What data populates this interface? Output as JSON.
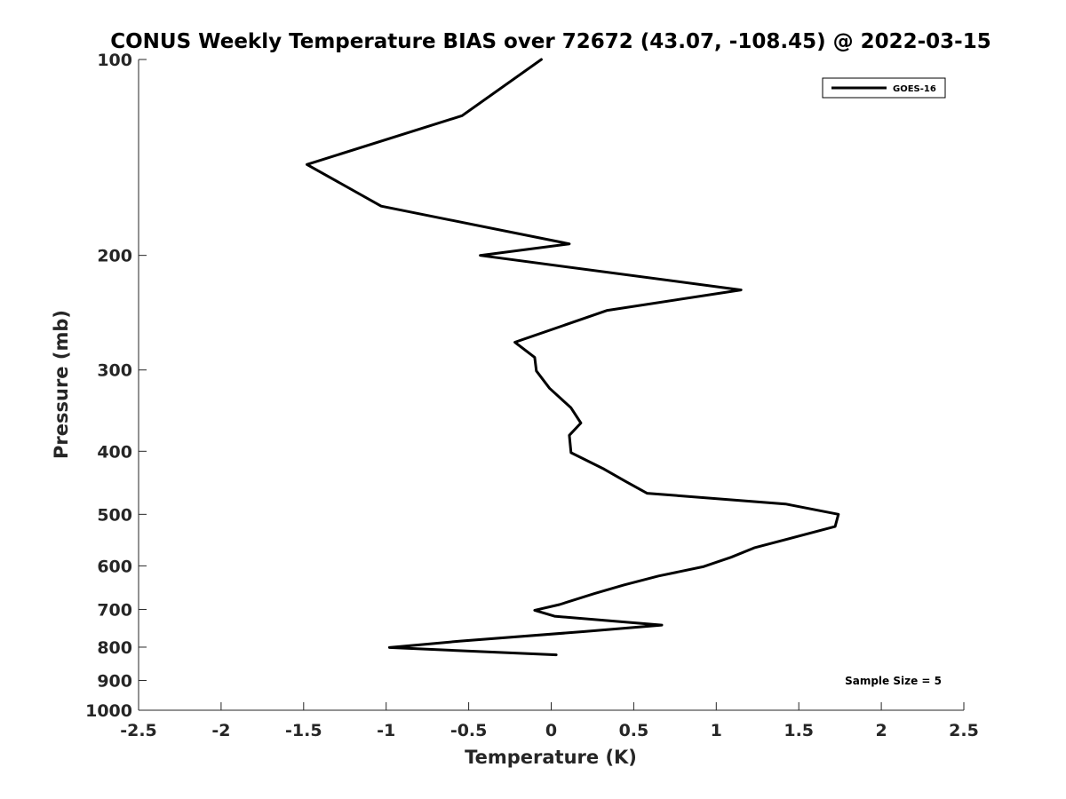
{
  "chart_data": {
    "type": "line",
    "title": "CONUS Weekly Temperature BIAS over 72672 (43.07, -108.45) @ 2022-03-15",
    "xlabel": "Temperature (K)",
    "ylabel": "Pressure (mb)",
    "xlim": [
      -2.5,
      2.5
    ],
    "ylim": [
      100,
      1000
    ],
    "yscale": "log",
    "yreversed": true,
    "x_ticks": [
      -2.5,
      -2,
      -1.5,
      -1,
      -0.5,
      0,
      0.5,
      1,
      1.5,
      2,
      2.5
    ],
    "x_tick_labels": [
      "-2.5",
      "-2",
      "-1.5",
      "-1",
      "-0.5",
      "0",
      "0.5",
      "1",
      "1.5",
      "2",
      "2.5"
    ],
    "y_ticks": [
      100,
      200,
      300,
      400,
      500,
      600,
      700,
      800,
      900,
      1000
    ],
    "y_tick_labels": [
      "100",
      "200",
      "300",
      "400",
      "500",
      "600",
      "700",
      "800",
      "900",
      "1000"
    ],
    "grid": false,
    "legend_position": "top-right",
    "series": [
      {
        "name": "GOES-16",
        "color": "#000000",
        "points": [
          {
            "x": -0.06,
            "p": 100
          },
          {
            "x": -0.54,
            "p": 122
          },
          {
            "x": -1.48,
            "p": 145
          },
          {
            "x": -1.03,
            "p": 168
          },
          {
            "x": 0.11,
            "p": 192
          },
          {
            "x": -0.43,
            "p": 200
          },
          {
            "x": 1.15,
            "p": 226
          },
          {
            "x": 0.34,
            "p": 243
          },
          {
            "x": -0.22,
            "p": 272
          },
          {
            "x": -0.1,
            "p": 287
          },
          {
            "x": -0.09,
            "p": 301
          },
          {
            "x": -0.01,
            "p": 320
          },
          {
            "x": 0.12,
            "p": 343
          },
          {
            "x": 0.18,
            "p": 362
          },
          {
            "x": 0.11,
            "p": 378
          },
          {
            "x": 0.12,
            "p": 402
          },
          {
            "x": 0.32,
            "p": 426
          },
          {
            "x": 0.45,
            "p": 445
          },
          {
            "x": 0.58,
            "p": 464
          },
          {
            "x": 1.42,
            "p": 482
          },
          {
            "x": 1.74,
            "p": 500
          },
          {
            "x": 1.72,
            "p": 522
          },
          {
            "x": 1.23,
            "p": 563
          },
          {
            "x": 1.09,
            "p": 582
          },
          {
            "x": 0.92,
            "p": 602
          },
          {
            "x": 0.65,
            "p": 622
          },
          {
            "x": 0.44,
            "p": 642
          },
          {
            "x": 0.26,
            "p": 662
          },
          {
            "x": 0.05,
            "p": 688
          },
          {
            "x": -0.1,
            "p": 702
          },
          {
            "x": 0.02,
            "p": 717
          },
          {
            "x": 0.67,
            "p": 740
          },
          {
            "x": 0.2,
            "p": 757
          },
          {
            "x": -0.55,
            "p": 783
          },
          {
            "x": -0.98,
            "p": 801
          },
          {
            "x": 0.03,
            "p": 822
          }
        ]
      }
    ],
    "annotations": [
      "Sample Size = 5"
    ]
  }
}
